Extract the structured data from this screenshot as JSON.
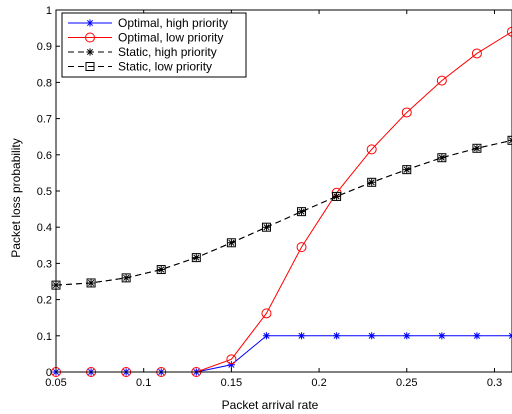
{
  "chart_data": {
    "type": "line",
    "xlabel": "Packet arrival rate",
    "ylabel": "Packet loss probability",
    "xlim": [
      0.05,
      0.31
    ],
    "ylim": [
      0,
      1
    ],
    "xticks": [
      "0.05",
      "0.1",
      "0.15",
      "0.2",
      "0.25",
      "0.3"
    ],
    "yticks": [
      "0",
      "0.1",
      "0.2",
      "0.3",
      "0.4",
      "0.5",
      "0.6",
      "0.7",
      "0.8",
      "0.9",
      "1"
    ],
    "grid": false,
    "legend_position": "top-left",
    "x": [
      0.05,
      0.07,
      0.09,
      0.11,
      0.13,
      0.15,
      0.17,
      0.19,
      0.21,
      0.23,
      0.25,
      0.27,
      0.29,
      0.31
    ],
    "series": [
      {
        "name": "Optimal, high priority",
        "color": "#0000ff",
        "marker": "asterisk",
        "line": "solid",
        "values": [
          0,
          0,
          0,
          0,
          0,
          0.02,
          0.1,
          0.1,
          0.1,
          0.1,
          0.1,
          0.1,
          0.1,
          0.1
        ]
      },
      {
        "name": "Optimal, low priority",
        "color": "#ff0000",
        "marker": "circle",
        "line": "solid",
        "values": [
          0,
          0,
          0,
          0,
          0,
          0.035,
          0.162,
          0.345,
          0.495,
          0.615,
          0.717,
          0.805,
          0.88,
          0.94
        ]
      },
      {
        "name": "Static, high priority",
        "color": "#000000",
        "marker": "asterisk",
        "line": "dashed",
        "values": [
          0.24,
          0.246,
          0.26,
          0.283,
          0.316,
          0.357,
          0.4,
          0.443,
          0.485,
          0.524,
          0.559,
          0.592,
          0.618,
          0.64
        ]
      },
      {
        "name": "Static, low priority",
        "color": "#000000",
        "marker": "square",
        "line": "dashed",
        "values": [
          0.24,
          0.246,
          0.26,
          0.283,
          0.316,
          0.357,
          0.4,
          0.443,
          0.485,
          0.524,
          0.559,
          0.592,
          0.618,
          0.64
        ]
      }
    ]
  }
}
